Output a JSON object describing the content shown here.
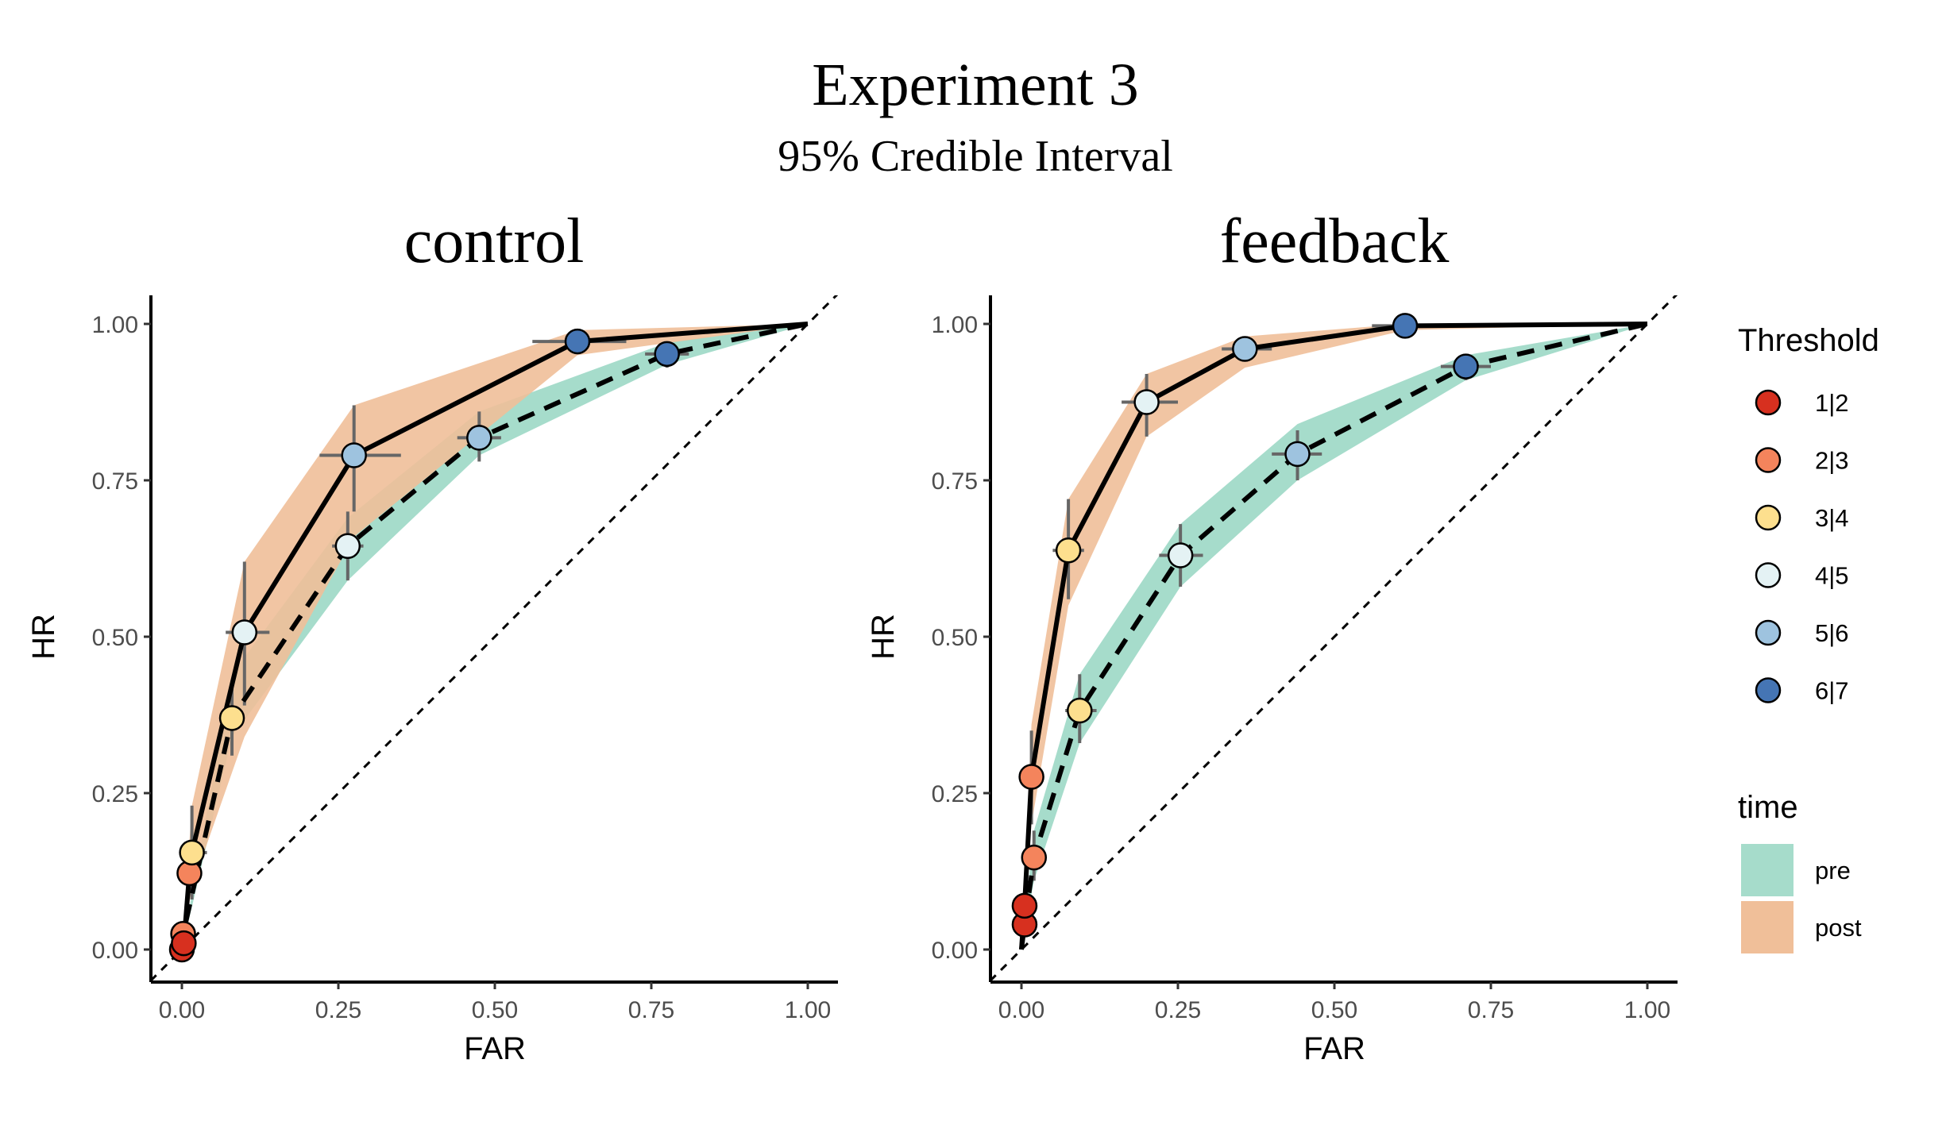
{
  "figure": {
    "title": "Experiment 3",
    "subtitle": "95% Credible Interval"
  },
  "colors": {
    "pre_fill": "#a6dccb",
    "post_fill": "#f0bf99",
    "thresholds": [
      "#d7301f",
      "#f4845c",
      "#fddf8e",
      "#e4f2f4",
      "#9ec3df",
      "#4575b4"
    ],
    "line": "#000000",
    "errorbar": "#666666"
  },
  "legend": {
    "threshold_title": "Threshold",
    "threshold_items": [
      "1|2",
      "2|3",
      "3|4",
      "4|5",
      "5|6",
      "6|7"
    ],
    "time_title": "time",
    "time_items": [
      "pre",
      "post"
    ]
  },
  "chart_data": [
    {
      "type": "line",
      "panel": "control",
      "title": "control",
      "xlabel": "FAR",
      "ylabel": "HR",
      "xlim": [
        0,
        1
      ],
      "ylim": [
        0,
        1
      ],
      "xticks": [
        "0.00",
        "0.25",
        "0.50",
        "0.75",
        "1.00"
      ],
      "yticks": [
        "0.00",
        "0.25",
        "0.50",
        "0.75",
        "1.00"
      ],
      "chance_line": true,
      "grid": false,
      "legend_position": "right",
      "series": [
        {
          "name": "pre",
          "points": [
            {
              "threshold": "1|2",
              "far": 0.0,
              "hr": 0.0
            },
            {
              "threshold": "2|3",
              "far": 0.002,
              "hr": 0.025
            },
            {
              "threshold": "3|4",
              "far": 0.08,
              "hr": 0.37,
              "far_ci": [
                0.06,
                0.1
              ],
              "hr_ci": [
                0.31,
                0.43
              ]
            },
            {
              "threshold": "4|5",
              "far": 0.265,
              "hr": 0.645,
              "far_ci": [
                0.24,
                0.29
              ],
              "hr_ci": [
                0.59,
                0.7
              ]
            },
            {
              "threshold": "5|6",
              "far": 0.475,
              "hr": 0.818,
              "far_ci": [
                0.44,
                0.51
              ],
              "hr_ci": [
                0.78,
                0.86
              ]
            },
            {
              "threshold": "6|7",
              "far": 0.775,
              "hr": 0.952,
              "far_ci": [
                0.74,
                0.81
              ],
              "hr_ci": [
                0.93,
                0.97
              ]
            }
          ],
          "band": {
            "far": [
              0,
              0.08,
              0.265,
              0.475,
              0.775,
              1
            ],
            "lower": [
              0,
              0.34,
              0.59,
              0.79,
              0.935,
              1
            ],
            "upper": [
              0,
              0.44,
              0.69,
              0.86,
              0.97,
              1
            ]
          }
        },
        {
          "name": "post",
          "points": [
            {
              "threshold": "1|2",
              "far": 0.003,
              "hr": 0.01
            },
            {
              "threshold": "2|3",
              "far": 0.012,
              "hr": 0.122
            },
            {
              "threshold": "3|4",
              "far": 0.016,
              "hr": 0.155,
              "far_ci": [
                0.0,
                0.04
              ],
              "hr_ci": [
                0.08,
                0.23
              ]
            },
            {
              "threshold": "4|5",
              "far": 0.1,
              "hr": 0.507,
              "far_ci": [
                0.07,
                0.14
              ],
              "hr_ci": [
                0.39,
                0.62
              ]
            },
            {
              "threshold": "5|6",
              "far": 0.275,
              "hr": 0.79,
              "far_ci": [
                0.22,
                0.35
              ],
              "hr_ci": [
                0.7,
                0.87
              ]
            },
            {
              "threshold": "6|7",
              "far": 0.632,
              "hr": 0.972,
              "far_ci": [
                0.56,
                0.71
              ],
              "hr_ci": [
                0.96,
                0.985
              ]
            }
          ],
          "band": {
            "far": [
              0,
              0.016,
              0.1,
              0.275,
              0.632,
              1
            ],
            "lower": [
              0,
              0.1,
              0.34,
              0.66,
              0.95,
              1
            ],
            "upper": [
              0,
              0.23,
              0.62,
              0.87,
              0.99,
              1
            ]
          }
        }
      ]
    },
    {
      "type": "line",
      "panel": "feedback",
      "title": "feedback",
      "xlabel": "FAR",
      "ylabel": "HR",
      "xlim": [
        0,
        1
      ],
      "ylim": [
        0,
        1
      ],
      "xticks": [
        "0.00",
        "0.25",
        "0.50",
        "0.75",
        "1.00"
      ],
      "yticks": [
        "0.00",
        "0.25",
        "0.50",
        "0.75",
        "1.00"
      ],
      "chance_line": true,
      "grid": false,
      "legend_position": "right",
      "series": [
        {
          "name": "pre",
          "points": [
            {
              "threshold": "1|2",
              "far": 0.005,
              "hr": 0.04
            },
            {
              "threshold": "2|3",
              "far": 0.02,
              "hr": 0.147,
              "far_ci": [
                0.01,
                0.03
              ],
              "hr_ci": [
                0.11,
                0.19
              ]
            },
            {
              "threshold": "3|4",
              "far": 0.093,
              "hr": 0.382,
              "far_ci": [
                0.07,
                0.12
              ],
              "hr_ci": [
                0.33,
                0.44
              ]
            },
            {
              "threshold": "4|5",
              "far": 0.254,
              "hr": 0.63,
              "far_ci": [
                0.22,
                0.29
              ],
              "hr_ci": [
                0.58,
                0.68
              ]
            },
            {
              "threshold": "5|6",
              "far": 0.441,
              "hr": 0.792,
              "far_ci": [
                0.4,
                0.48
              ],
              "hr_ci": [
                0.75,
                0.83
              ]
            },
            {
              "threshold": "6|7",
              "far": 0.71,
              "hr": 0.932,
              "far_ci": [
                0.67,
                0.75
              ],
              "hr_ci": [
                0.91,
                0.95
              ]
            }
          ],
          "band": {
            "far": [
              0,
              0.02,
              0.093,
              0.254,
              0.441,
              0.71,
              1
            ],
            "lower": [
              0,
              0.11,
              0.33,
              0.58,
              0.75,
              0.91,
              1
            ],
            "upper": [
              0,
              0.19,
              0.44,
              0.68,
              0.84,
              0.95,
              1
            ]
          }
        },
        {
          "name": "post",
          "points": [
            {
              "threshold": "1|2",
              "far": 0.005,
              "hr": 0.07
            },
            {
              "threshold": "2|3",
              "far": 0.016,
              "hr": 0.276,
              "far_ci": [
                0.005,
                0.03
              ],
              "hr_ci": [
                0.2,
                0.35
              ]
            },
            {
              "threshold": "3|4",
              "far": 0.075,
              "hr": 0.638,
              "far_ci": [
                0.05,
                0.1
              ],
              "hr_ci": [
                0.56,
                0.72
              ]
            },
            {
              "threshold": "4|5",
              "far": 0.2,
              "hr": 0.875,
              "far_ci": [
                0.16,
                0.25
              ],
              "hr_ci": [
                0.82,
                0.92
              ]
            },
            {
              "threshold": "5|6",
              "far": 0.357,
              "hr": 0.96,
              "far_ci": [
                0.32,
                0.4
              ],
              "hr_ci": [
                0.94,
                0.98
              ]
            },
            {
              "threshold": "6|7",
              "far": 0.613,
              "hr": 0.997,
              "far_ci": [
                0.56,
                0.67
              ],
              "hr_ci": [
                0.99,
                1.0
              ]
            }
          ],
          "band": {
            "far": [
              0,
              0.016,
              0.075,
              0.2,
              0.357,
              0.613,
              1
            ],
            "lower": [
              0,
              0.2,
              0.55,
              0.82,
              0.93,
              0.99,
              1
            ],
            "upper": [
              0,
              0.36,
              0.72,
              0.92,
              0.98,
              1.0,
              1
            ]
          }
        }
      ]
    }
  ]
}
